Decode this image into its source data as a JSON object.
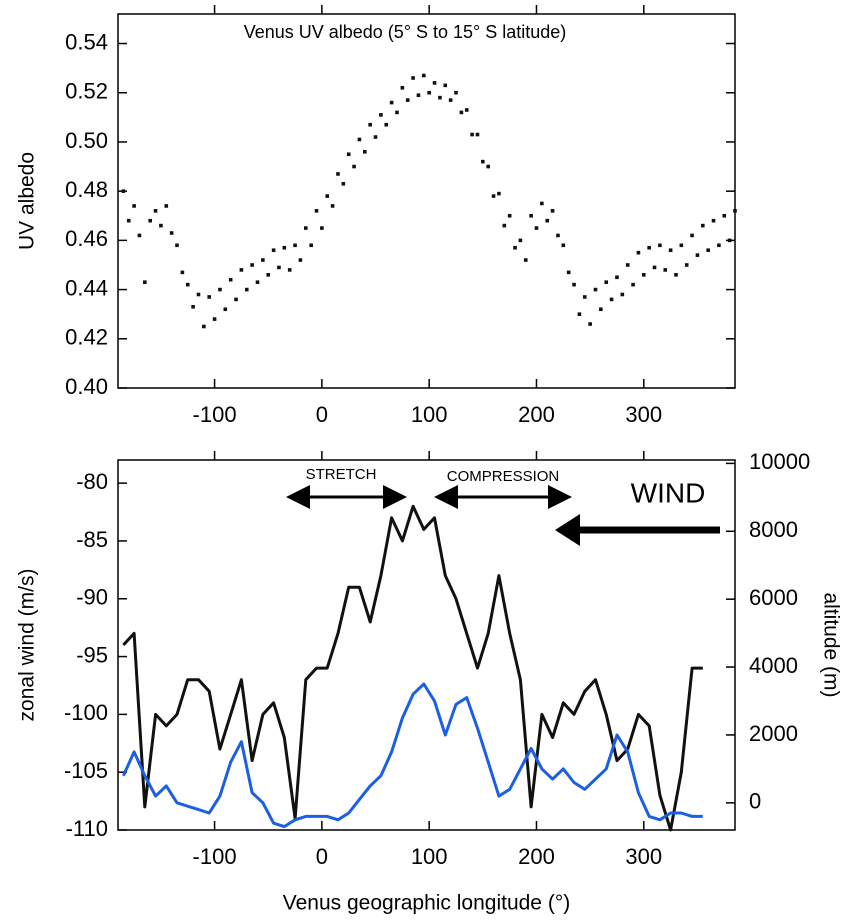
{
  "chart_data": [
    {
      "type": "scatter",
      "title": "Venus UV albedo (5° S to 15° S latitude)",
      "ylabel": "UV albedo",
      "xlim": [
        -190,
        385
      ],
      "ylim": [
        0.4,
        0.552
      ],
      "xticks": [
        -100,
        0,
        100,
        200,
        300
      ],
      "yticks": [
        {
          "value": 0.4,
          "label": "0.40"
        },
        0.42,
        0.44,
        0.46,
        0.48,
        {
          "value": 0.5,
          "label": "0.50"
        },
        0.52,
        0.54
      ],
      "color": "#111111",
      "x": [
        -185,
        -180,
        -175,
        -170,
        -165,
        -160,
        -155,
        -150,
        -145,
        -140,
        -135,
        -130,
        -125,
        -120,
        -115,
        -110,
        -105,
        -100,
        -95,
        -90,
        -85,
        -80,
        -75,
        -70,
        -65,
        -60,
        -55,
        -50,
        -45,
        -40,
        -35,
        -30,
        -25,
        -20,
        -15,
        -10,
        -5,
        0,
        5,
        10,
        15,
        20,
        25,
        30,
        35,
        40,
        45,
        50,
        55,
        60,
        65,
        70,
        75,
        80,
        85,
        90,
        95,
        100,
        105,
        110,
        115,
        120,
        125,
        130,
        135,
        140,
        145,
        150,
        155,
        160,
        165,
        170,
        175,
        180,
        185,
        190,
        195,
        200,
        205,
        210,
        215,
        220,
        225,
        230,
        235,
        240,
        245,
        250,
        255,
        260,
        265,
        270,
        275,
        280,
        285,
        290,
        295,
        300,
        305,
        310,
        315,
        320,
        325,
        330,
        335,
        340,
        345,
        350,
        355,
        360,
        365,
        370,
        375,
        380,
        385
      ],
      "y": [
        0.48,
        0.468,
        0.474,
        0.462,
        0.443,
        0.468,
        0.472,
        0.466,
        0.474,
        0.463,
        0.458,
        0.447,
        0.442,
        0.433,
        0.438,
        0.425,
        0.437,
        0.428,
        0.44,
        0.432,
        0.444,
        0.436,
        0.448,
        0.44,
        0.45,
        0.443,
        0.452,
        0.446,
        0.456,
        0.449,
        0.457,
        0.448,
        0.458,
        0.452,
        0.465,
        0.458,
        0.472,
        0.465,
        0.478,
        0.474,
        0.487,
        0.483,
        0.495,
        0.49,
        0.501,
        0.496,
        0.507,
        0.502,
        0.511,
        0.507,
        0.516,
        0.512,
        0.522,
        0.517,
        0.526,
        0.519,
        0.527,
        0.52,
        0.524,
        0.518,
        0.523,
        0.517,
        0.52,
        0.512,
        0.513,
        0.503,
        0.503,
        0.492,
        0.49,
        0.478,
        0.479,
        0.466,
        0.47,
        0.457,
        0.46,
        0.452,
        0.47,
        0.465,
        0.475,
        0.468,
        0.472,
        0.462,
        0.458,
        0.447,
        0.442,
        0.43,
        0.437,
        0.426,
        0.44,
        0.432,
        0.443,
        0.436,
        0.445,
        0.438,
        0.45,
        0.442,
        0.455,
        0.446,
        0.457,
        0.449,
        0.458,
        0.448,
        0.456,
        0.446,
        0.458,
        0.45,
        0.462,
        0.454,
        0.466,
        0.456,
        0.468,
        0.458,
        0.47,
        0.46,
        0.472
      ]
    },
    {
      "type": "line",
      "xlabel": "Venus geographic longitude (°)",
      "ylabel": "zonal wind (m/s)",
      "y2label": "altitude (m)",
      "xlim": [
        -190,
        385
      ],
      "ylim": [
        -110,
        -78
      ],
      "y2lim": [
        -800,
        10100
      ],
      "xticks": [
        -100,
        0,
        100,
        200,
        300
      ],
      "yticks": [
        -110,
        -105,
        -100,
        -95,
        -90,
        -85,
        -80
      ],
      "y2ticks": [
        0,
        2000,
        4000,
        6000,
        8000,
        10000
      ],
      "annotations": [
        "STRETCH",
        "COMPRESSION",
        "WIND"
      ],
      "x": [
        -185,
        -175,
        -165,
        -155,
        -145,
        -135,
        -125,
        -115,
        -105,
        -95,
        -85,
        -75,
        -65,
        -55,
        -45,
        -35,
        -25,
        -15,
        -5,
        5,
        15,
        25,
        35,
        45,
        55,
        65,
        75,
        85,
        95,
        105,
        115,
        125,
        135,
        145,
        155,
        165,
        175,
        185,
        195,
        205,
        215,
        225,
        235,
        245,
        255,
        265,
        275,
        285,
        295,
        305,
        315,
        325,
        335,
        345,
        355
      ],
      "series": [
        {
          "color": "#111111",
          "values": [
            -94,
            -93,
            -108,
            -100,
            -101,
            -100,
            -97,
            -97,
            -98,
            -103,
            -100,
            -97,
            -104,
            -100,
            -99,
            -102,
            -109,
            -97,
            -96,
            -96,
            -93,
            -89,
            -89,
            -92,
            -88,
            -83,
            -85,
            -82,
            -84,
            -83,
            -88,
            -90,
            -93,
            -96,
            -93,
            -88,
            -93,
            -97,
            -108,
            -100,
            -102,
            -99,
            -100,
            -98,
            -97,
            -100,
            -104,
            -103,
            -100,
            -101,
            -107,
            -110,
            -105,
            -96,
            -96
          ]
        },
        {
          "color": "#1a5fe6",
          "axis": "y2",
          "values": [
            800,
            1500,
            800,
            200,
            500,
            0,
            -100,
            -200,
            -300,
            200,
            1200,
            1800,
            300,
            0,
            -600,
            -700,
            -500,
            -400,
            -400,
            -400,
            -500,
            -300,
            100,
            500,
            800,
            1500,
            2500,
            3200,
            3500,
            3000,
            2000,
            2900,
            3100,
            2200,
            1200,
            200,
            400,
            1000,
            1600,
            1000,
            700,
            1000,
            600,
            400,
            700,
            1000,
            2000,
            1500,
            300,
            -400,
            -500,
            -300,
            -300,
            -400,
            -400
          ]
        }
      ]
    }
  ]
}
